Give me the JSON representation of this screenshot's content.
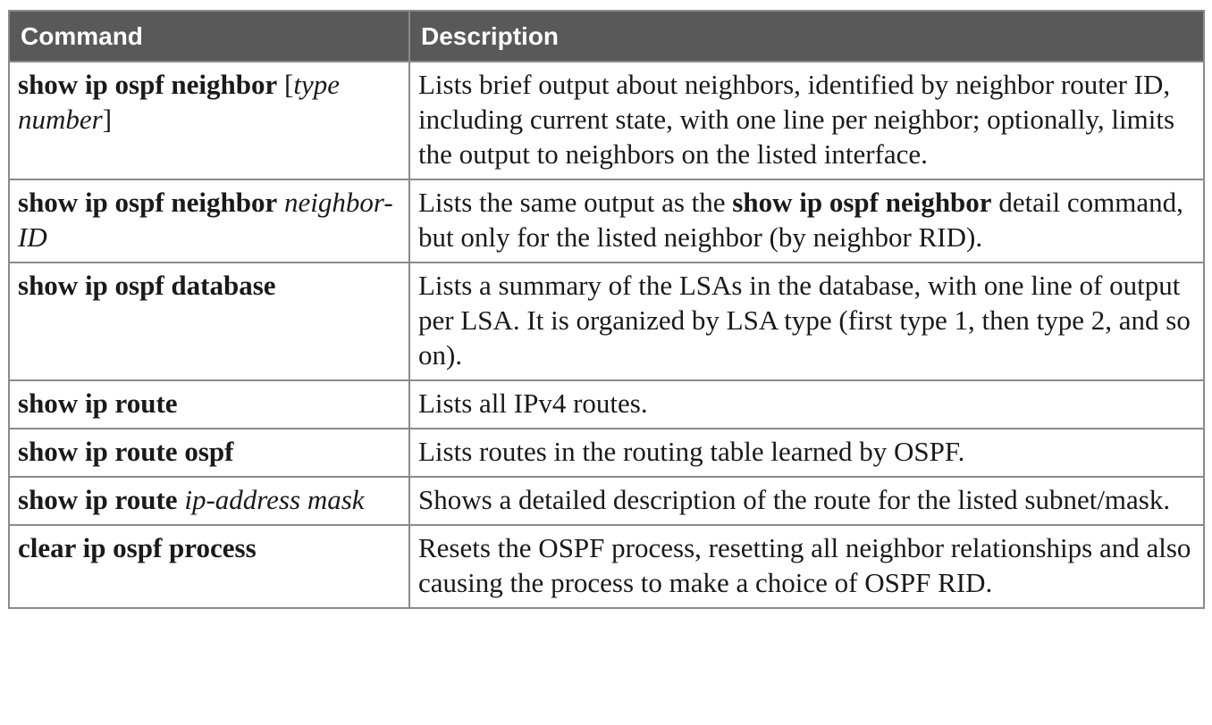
{
  "header": {
    "command": "Command",
    "description": "Description"
  },
  "rows": [
    {
      "cmd_bold": "show ip ospf neighbor",
      "cmd_open": " [",
      "cmd_italic": "type number",
      "cmd_close": "]",
      "desc": "Lists brief output about neighbors, identified by neighbor router ID, including current state, with one line per neighbor; optionally, limits the output to neighbors on the listed interface."
    },
    {
      "cmd_bold": "show ip ospf neighbor",
      "cmd_italic": "neighbor-ID",
      "desc_pre": "Lists the same output as the ",
      "desc_bold": "show ip ospf neighbor",
      "desc_post": " detail command, but only for the listed neighbor (by neighbor RID)."
    },
    {
      "cmd_bold": "show ip ospf database",
      "desc": "Lists a summary of the LSAs in the database, with one line of output per LSA. It is organized by LSA type (first type 1, then type 2, and so on)."
    },
    {
      "cmd_bold": "show ip route",
      "desc": "Lists all IPv4 routes."
    },
    {
      "cmd_bold": "show ip route ospf",
      "desc": "Lists routes in the routing table learned by OSPF."
    },
    {
      "cmd_bold": "show ip route",
      "cmd_italic": "ip-address mask",
      "desc": "Shows a detailed description of the route for the listed subnet/mask."
    },
    {
      "cmd_bold": "clear ip ospf process",
      "desc": "Resets the OSPF process, resetting all neighbor relationships and also causing the process to make a choice of OSPF RID."
    }
  ]
}
